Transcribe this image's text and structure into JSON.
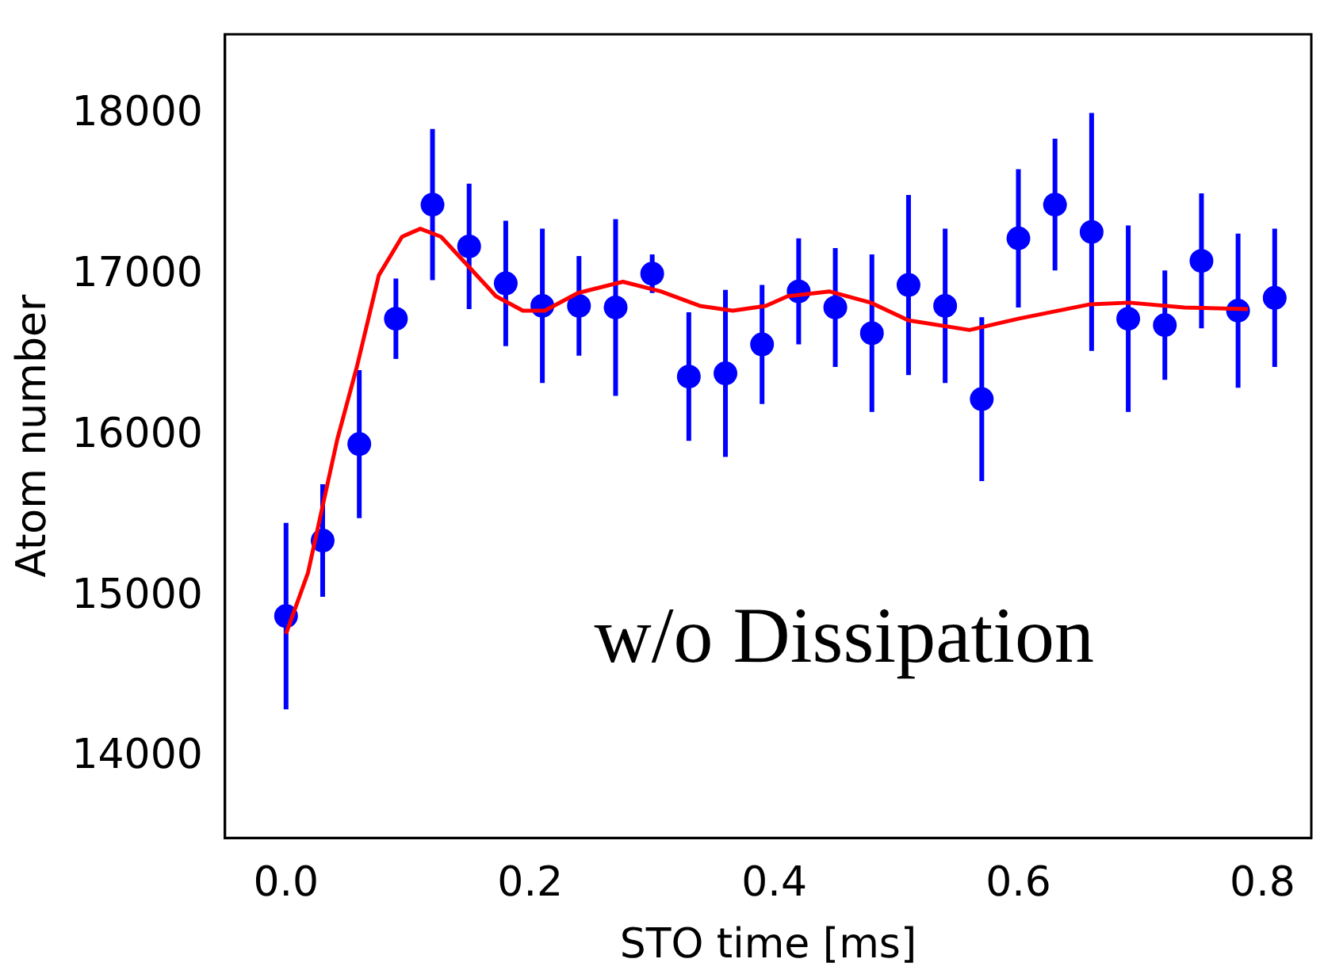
{
  "chart_data": {
    "type": "scatter",
    "xlabel": "STO time [ms]",
    "ylabel": "Atom number",
    "annotations": [
      "w/o Dissipation"
    ],
    "xlim": [
      -0.05,
      0.84
    ],
    "xticks": [
      {
        "value": 0,
        "label": "0.0"
      },
      {
        "value": 0.2,
        "label": "0.2"
      },
      {
        "value": 0.4,
        "label": "0.4"
      },
      {
        "value": 0.6,
        "label": "0.6"
      },
      {
        "value": 0.8,
        "label": "0.8"
      }
    ],
    "ylim": [
      13500,
      18500
    ],
    "yticks": [
      14000,
      15000,
      16000,
      17000,
      18000
    ],
    "grid": false,
    "legend": false,
    "series": [
      {
        "type": "scatter",
        "color": "#0000ff",
        "marker": "circle",
        "x": [
          0,
          0.03,
          0.06,
          0.09,
          0.12,
          0.15,
          0.18,
          0.21,
          0.24,
          0.27,
          0.3,
          0.33,
          0.36,
          0.39,
          0.42,
          0.45,
          0.48,
          0.51,
          0.54,
          0.57,
          0.6,
          0.63,
          0.66,
          0.69,
          0.72,
          0.75,
          0.78,
          0.81
        ],
        "values": [
          14880,
          15350,
          15950,
          16730,
          17440,
          17180,
          16950,
          16810,
          16810,
          16800,
          17010,
          16370,
          16390,
          16570,
          16900,
          16800,
          16640,
          16940,
          16810,
          16230,
          17230,
          17440,
          17270,
          16730,
          16690,
          17090,
          16780,
          16860
        ],
        "errors": [
          580,
          350,
          460,
          250,
          470,
          390,
          390,
          480,
          310,
          550,
          120,
          400,
          520,
          370,
          330,
          370,
          490,
          560,
          480,
          510,
          430,
          410,
          740,
          580,
          340,
          420,
          480,
          430
        ]
      },
      {
        "type": "line",
        "color": "#ff0000",
        "marker": "none",
        "line_style": "solid",
        "x": [
          0,
          0.018,
          0.042,
          0.058,
          0.076,
          0.095,
          0.11,
          0.127,
          0.149,
          0.172,
          0.194,
          0.212,
          0.239,
          0.276,
          0.307,
          0.339,
          0.366,
          0.393,
          0.411,
          0.445,
          0.479,
          0.51,
          0.56,
          0.6,
          0.659,
          0.691,
          0.736,
          0.788
        ],
        "values": [
          14770,
          15150,
          15980,
          16430,
          17000,
          17240,
          17290,
          17240,
          17060,
          16870,
          16780,
          16780,
          16890,
          16960,
          16900,
          16810,
          16780,
          16810,
          16870,
          16900,
          16830,
          16720,
          16660,
          16730,
          16820,
          16830,
          16800,
          16790
        ]
      }
    ]
  }
}
